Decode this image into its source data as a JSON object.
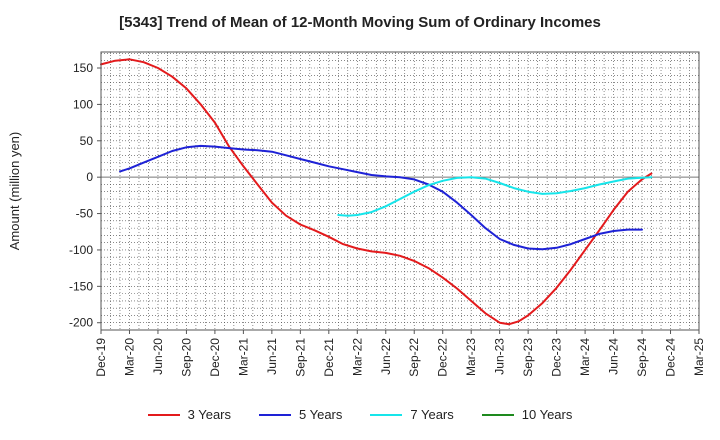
{
  "chart_data": {
    "type": "line",
    "title": "[5343]  Trend of Mean of 12-Month Moving Sum of Ordinary Incomes",
    "xlabel": "",
    "ylabel": "Amount (million yen)",
    "ylim": [
      -210,
      172
    ],
    "yticks": [
      150,
      100,
      50,
      0,
      -50,
      -100,
      -150,
      -200
    ],
    "categories": [
      "Dec-19",
      "Mar-20",
      "Jun-20",
      "Sep-20",
      "Dec-20",
      "Mar-21",
      "Jun-21",
      "Sep-21",
      "Dec-21",
      "Mar-22",
      "Jun-22",
      "Sep-22",
      "Dec-22",
      "Mar-23",
      "Jun-23",
      "Sep-23",
      "Dec-23",
      "Mar-24",
      "Jun-24",
      "Sep-24",
      "Dec-24",
      "Mar-25"
    ],
    "grid": true,
    "legend_position": "bottom",
    "series": [
      {
        "name": "3 Years",
        "color": "#e31a1c",
        "points": [
          [
            0,
            155
          ],
          [
            0.5,
            160
          ],
          [
            1,
            162
          ],
          [
            1.5,
            158
          ],
          [
            2,
            150
          ],
          [
            2.5,
            138
          ],
          [
            3,
            122
          ],
          [
            3.5,
            100
          ],
          [
            4,
            75
          ],
          [
            4.5,
            42
          ],
          [
            5,
            15
          ],
          [
            5.5,
            -10
          ],
          [
            6,
            -35
          ],
          [
            6.5,
            -53
          ],
          [
            7,
            -65
          ],
          [
            7.5,
            -73
          ],
          [
            8,
            -82
          ],
          [
            8.5,
            -92
          ],
          [
            9,
            -98
          ],
          [
            9.5,
            -102
          ],
          [
            10,
            -104
          ],
          [
            10.5,
            -108
          ],
          [
            11,
            -115
          ],
          [
            11.5,
            -125
          ],
          [
            12,
            -138
          ],
          [
            12.5,
            -153
          ],
          [
            13,
            -170
          ],
          [
            13.5,
            -187
          ],
          [
            14,
            -200
          ],
          [
            14.33,
            -202
          ],
          [
            14.67,
            -198
          ],
          [
            15,
            -190
          ],
          [
            15.5,
            -173
          ],
          [
            16,
            -152
          ],
          [
            16.5,
            -127
          ],
          [
            17,
            -100
          ],
          [
            17.5,
            -73
          ],
          [
            18,
            -45
          ],
          [
            18.5,
            -20
          ],
          [
            19,
            -3
          ],
          [
            19.33,
            5
          ]
        ]
      },
      {
        "name": "5 Years",
        "color": "#1e22d6",
        "points": [
          [
            0.67,
            8
          ],
          [
            1,
            12
          ],
          [
            1.5,
            20
          ],
          [
            2,
            28
          ],
          [
            2.5,
            36
          ],
          [
            3,
            41
          ],
          [
            3.5,
            43
          ],
          [
            4,
            42
          ],
          [
            4.5,
            40
          ],
          [
            5,
            38
          ],
          [
            5.5,
            37
          ],
          [
            6,
            35
          ],
          [
            6.5,
            30
          ],
          [
            7,
            25
          ],
          [
            7.5,
            20
          ],
          [
            8,
            15
          ],
          [
            8.5,
            11
          ],
          [
            9,
            7
          ],
          [
            9.5,
            3
          ],
          [
            10,
            1
          ],
          [
            10.5,
            0
          ],
          [
            11,
            -3
          ],
          [
            11.5,
            -10
          ],
          [
            12,
            -20
          ],
          [
            12.5,
            -35
          ],
          [
            13,
            -52
          ],
          [
            13.5,
            -70
          ],
          [
            14,
            -85
          ],
          [
            14.5,
            -93
          ],
          [
            15,
            -98
          ],
          [
            15.5,
            -99
          ],
          [
            16,
            -97
          ],
          [
            16.5,
            -92
          ],
          [
            17,
            -85
          ],
          [
            17.5,
            -78
          ],
          [
            18,
            -74
          ],
          [
            18.5,
            -72
          ],
          [
            19,
            -72
          ]
        ]
      },
      {
        "name": "7 Years",
        "color": "#16e5ea",
        "points": [
          [
            8.33,
            -52
          ],
          [
            8.67,
            -53
          ],
          [
            9,
            -52
          ],
          [
            9.5,
            -48
          ],
          [
            10,
            -40
          ],
          [
            10.5,
            -30
          ],
          [
            11,
            -20
          ],
          [
            11.5,
            -11
          ],
          [
            12,
            -5
          ],
          [
            12.5,
            -1
          ],
          [
            13,
            0
          ],
          [
            13.5,
            -2
          ],
          [
            14,
            -8
          ],
          [
            14.5,
            -15
          ],
          [
            15,
            -20
          ],
          [
            15.5,
            -23
          ],
          [
            16,
            -22
          ],
          [
            16.5,
            -19
          ],
          [
            17,
            -15
          ],
          [
            17.5,
            -10
          ],
          [
            18,
            -6
          ],
          [
            18.5,
            -2
          ],
          [
            19.33,
            0
          ]
        ]
      },
      {
        "name": "10 Years",
        "color": "#1e8a1e",
        "points": []
      }
    ]
  }
}
